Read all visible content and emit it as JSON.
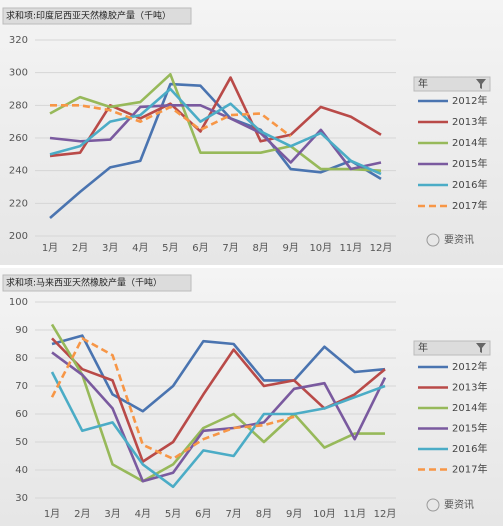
{
  "chart_data": [
    {
      "type": "line",
      "title": "求和项:印度尼西亚天然橡胶产量（千吨）",
      "legend_title": "年",
      "watermark": "要资讯",
      "categories": [
        "1月",
        "2月",
        "3月",
        "4月",
        "5月",
        "6月",
        "7月",
        "8月",
        "9月",
        "10月",
        "11月",
        "12月"
      ],
      "ylim": [
        200,
        320
      ],
      "yticks": [
        200,
        220,
        240,
        260,
        280,
        300,
        320
      ],
      "grid": true,
      "legend": "right",
      "series": [
        {
          "name": "2012年",
          "color": "#4a74b0",
          "values": [
            211,
            227,
            242,
            246,
            293,
            292,
            272,
            265,
            241,
            239,
            246,
            235
          ]
        },
        {
          "name": "2013年",
          "color": "#b94a48",
          "values": [
            249,
            251,
            280,
            272,
            281,
            264,
            297,
            258,
            262,
            279,
            273,
            262
          ]
        },
        {
          "name": "2014年",
          "color": "#97b95a",
          "values": [
            275,
            285,
            279,
            282,
            299,
            251,
            251,
            251,
            255,
            241,
            241,
            240
          ]
        },
        {
          "name": "2015年",
          "color": "#7a5a9f",
          "values": [
            260,
            258,
            259,
            279,
            280,
            280,
            272,
            263,
            245,
            265,
            241,
            245
          ]
        },
        {
          "name": "2016年",
          "color": "#4bacc6",
          "values": [
            250,
            255,
            270,
            274,
            290,
            270,
            281,
            264,
            255,
            263,
            246,
            238
          ]
        },
        {
          "name": "2017年",
          "color": "#f79646",
          "dash": true,
          "values": [
            280,
            280,
            277,
            270,
            279,
            265,
            274,
            275,
            261,
            null,
            null,
            null
          ]
        }
      ]
    },
    {
      "type": "line",
      "title": "求和项:马来西亚天然橡胶产量（千吨）",
      "legend_title": "年",
      "watermark": "要资讯",
      "categories": [
        "1月",
        "2月",
        "3月",
        "4月",
        "5月",
        "6月",
        "7月",
        "8月",
        "9月",
        "10月",
        "11月",
        "12月"
      ],
      "ylim": [
        30,
        100
      ],
      "yticks": [
        30,
        40,
        50,
        60,
        70,
        80,
        90,
        100
      ],
      "grid": true,
      "legend": "right",
      "series": [
        {
          "name": "2012年",
          "color": "#4a74b0",
          "values": [
            85,
            88,
            67,
            61,
            70,
            86,
            85,
            72,
            72,
            84,
            75,
            76
          ]
        },
        {
          "name": "2013年",
          "color": "#b94a48",
          "values": [
            87,
            76,
            72,
            43,
            50,
            67,
            83,
            70,
            72,
            62,
            67,
            76
          ]
        },
        {
          "name": "2014年",
          "color": "#97b95a",
          "values": [
            92,
            74,
            42,
            36,
            42,
            55,
            60,
            50,
            60,
            48,
            53,
            53
          ]
        },
        {
          "name": "2015年",
          "color": "#7a5a9f",
          "values": [
            82,
            74,
            62,
            36,
            39,
            54,
            55,
            57,
            69,
            71,
            51,
            73
          ]
        },
        {
          "name": "2016年",
          "color": "#4bacc6",
          "values": [
            75,
            54,
            57,
            42,
            34,
            47,
            45,
            60,
            60,
            62,
            66,
            70
          ]
        },
        {
          "name": "2017年",
          "color": "#f79646",
          "dash": true,
          "values": [
            66,
            87,
            81,
            49,
            44,
            51,
            55,
            56,
            59,
            null,
            null,
            null
          ]
        }
      ]
    }
  ]
}
